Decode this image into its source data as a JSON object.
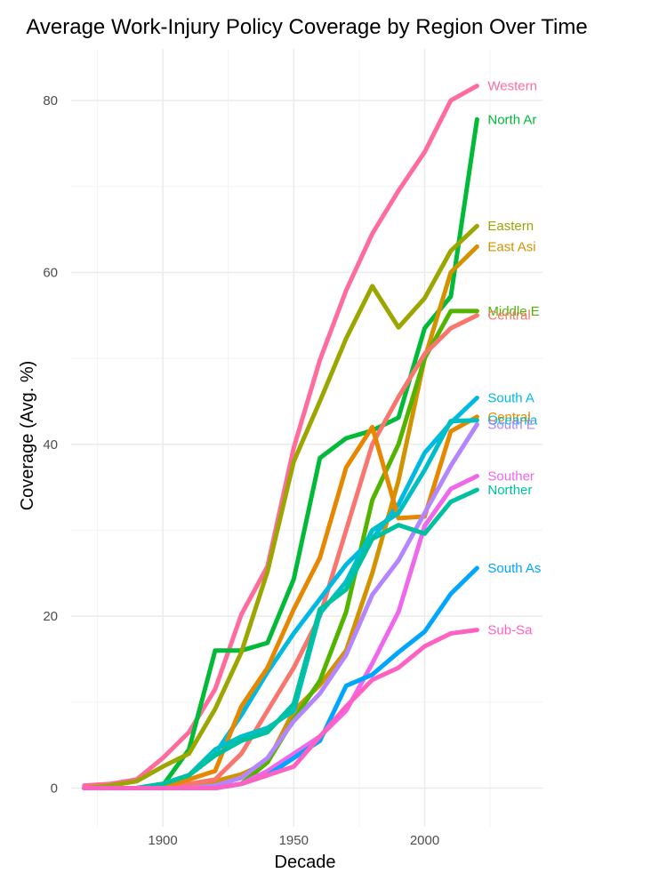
{
  "chart_data": {
    "type": "line",
    "title": "Average Work-Injury Policy Coverage by Region Over Time",
    "xlabel": "Decade",
    "ylabel": "Coverage (Avg. %)",
    "xlim": [
      1865,
      2045
    ],
    "ylim": [
      -4.5,
      86
    ],
    "x_ticks": [
      1900,
      1950,
      2000
    ],
    "y_ticks": [
      0,
      20,
      40,
      60,
      80
    ],
    "grid": true,
    "legend": "direct labels at line ends",
    "x": [
      1870,
      1880,
      1890,
      1900,
      1910,
      1920,
      1930,
      1940,
      1950,
      1960,
      1970,
      1980,
      1990,
      2000,
      2010,
      2020
    ],
    "series": [
      {
        "name": "Western Europe",
        "label": "Western",
        "color": "#FF6C9C",
        "values": [
          0.3,
          0.5,
          1.0,
          3.5,
          6.5,
          11.5,
          20.2,
          25.8,
          39.6,
          49.8,
          57.9,
          64.5,
          69.5,
          74.0,
          80.0,
          81.7
        ]
      },
      {
        "name": "North America",
        "label": "North Ar",
        "color": "#00BA38",
        "values": [
          0,
          0,
          0,
          0.3,
          4.5,
          16.0,
          16.0,
          16.9,
          24.3,
          38.4,
          40.7,
          41.6,
          43.1,
          53.5,
          57.2,
          77.8
        ]
      },
      {
        "name": "Eastern Europe",
        "label": "Eastern",
        "color": "#9BA600",
        "values": [
          0,
          0.3,
          0.8,
          2.5,
          4.0,
          9.2,
          15.8,
          25.2,
          38.0,
          45.0,
          52.3,
          58.4,
          53.6,
          57.0,
          62.5,
          65.4
        ]
      },
      {
        "name": "East Asia",
        "label": "East Asi",
        "color": "#D39200",
        "values": [
          0,
          0,
          0,
          0,
          0.5,
          0.8,
          1.6,
          3.0,
          9.0,
          12.0,
          16.0,
          25.0,
          35.8,
          50.0,
          60.0,
          63.0
        ]
      },
      {
        "name": "Middle East",
        "label": "Middle E",
        "color": "#53B400",
        "values": [
          0,
          0,
          0,
          0,
          0,
          0,
          0.5,
          3.0,
          8.0,
          12.5,
          20.5,
          33.5,
          40.0,
          50.0,
          55.5,
          55.5
        ]
      },
      {
        "name": "Central Asia",
        "label": "Central",
        "color": "#F8766D",
        "values": [
          0,
          0,
          0,
          0,
          0.5,
          1.0,
          4.0,
          9.0,
          14.0,
          20.0,
          30.0,
          40.0,
          45.5,
          50.5,
          53.5,
          55.0
        ]
      },
      {
        "name": "South America",
        "label": "South A",
        "color": "#00B9E3",
        "values": [
          0,
          0,
          0,
          0.5,
          1.5,
          4.0,
          8.5,
          13.5,
          18.0,
          22.0,
          26.0,
          29.0,
          33.0,
          39.0,
          42.5,
          45.4
        ]
      },
      {
        "name": "Central America",
        "label": "Central",
        "color": "#E58700",
        "values": [
          0,
          0,
          0,
          0.2,
          1.0,
          2.0,
          9.5,
          14.0,
          20.8,
          26.8,
          37.3,
          42.0,
          31.4,
          31.6,
          41.5,
          43.2
        ]
      },
      {
        "name": "Oceania",
        "label": "Oceania",
        "color": "#00BFC4",
        "values": [
          0,
          0,
          0,
          0.5,
          1.5,
          4.5,
          6.0,
          7.0,
          9.0,
          20.3,
          24.0,
          30.0,
          32.0,
          37.0,
          42.7,
          42.8
        ]
      },
      {
        "name": "South East Asia",
        "label": "South E",
        "color": "#B385FF",
        "values": [
          0,
          0,
          0,
          0,
          0,
          0.3,
          1.2,
          3.5,
          7.8,
          11.0,
          15.5,
          22.5,
          26.5,
          32.0,
          37.5,
          42.3
        ]
      },
      {
        "name": "Southern Europe",
        "label": "Souther",
        "color": "#EF67EB",
        "values": [
          0,
          0,
          0,
          0,
          0,
          0,
          0.5,
          2.0,
          4.0,
          6.0,
          9.0,
          14.5,
          20.5,
          30.5,
          34.8,
          36.3
        ]
      },
      {
        "name": "Northern Europe",
        "label": "Norther",
        "color": "#00C19F",
        "values": [
          0,
          0,
          0,
          0.5,
          1.5,
          3.8,
          5.5,
          6.5,
          9.8,
          20.8,
          23.1,
          29.0,
          30.6,
          29.6,
          33.3,
          34.7
        ]
      },
      {
        "name": "South Asia",
        "label": "South As",
        "color": "#00A5FF",
        "values": [
          0,
          0,
          0,
          0,
          0,
          0,
          0.5,
          1.5,
          3.5,
          5.5,
          11.9,
          13.2,
          15.8,
          18.2,
          22.6,
          25.6
        ]
      },
      {
        "name": "Sub-Saharan Africa",
        "label": "Sub-Sa",
        "color": "#FF61C3",
        "values": [
          0,
          0,
          0,
          0,
          0,
          0,
          0.5,
          1.5,
          2.5,
          6.0,
          9.5,
          12.6,
          14.0,
          16.5,
          18.0,
          18.4
        ]
      }
    ]
  }
}
